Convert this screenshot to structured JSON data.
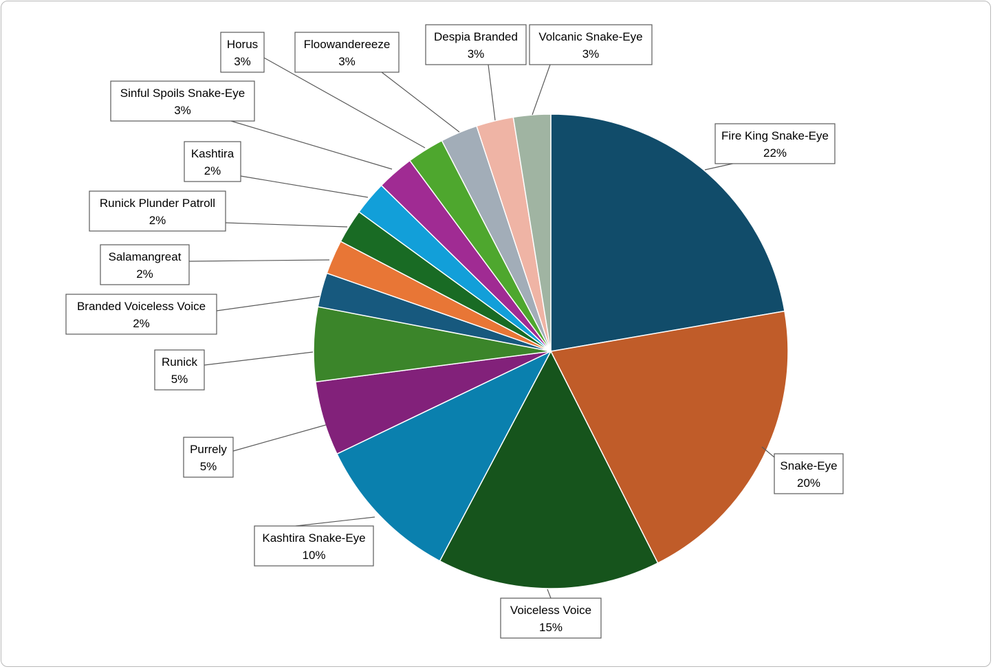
{
  "chart_data": {
    "type": "pie",
    "title": "",
    "start_angle_deg": 0,
    "direction": "clockwise",
    "slices": [
      {
        "label": "Fire King Snake-Eye",
        "value": 22,
        "display": "22%",
        "color": "#114c6a"
      },
      {
        "label": "Snake-Eye",
        "value": 20,
        "display": "20%",
        "color": "#c05c29"
      },
      {
        "label": "Voiceless Voice",
        "value": 15,
        "display": "15%",
        "color": "#16541c"
      },
      {
        "label": "Kashtira Snake-Eye",
        "value": 10,
        "display": "10%",
        "color": "#0a80ae"
      },
      {
        "label": "Purrely",
        "value": 5,
        "display": "5%",
        "color": "#82217a"
      },
      {
        "label": "Runick",
        "value": 5,
        "display": "5%",
        "color": "#3b852a"
      },
      {
        "label": "Branded Voiceless Voice",
        "value": 2.3,
        "display": "2%",
        "color": "#17597e"
      },
      {
        "label": "Salamangreat",
        "value": 2.3,
        "display": "2%",
        "color": "#e87636"
      },
      {
        "label": "Runick Plunder Patroll",
        "value": 2.3,
        "display": "2%",
        "color": "#196b24"
      },
      {
        "label": "Kashtira",
        "value": 2.3,
        "display": "2%",
        "color": "#129fd9"
      },
      {
        "label": "Sinful Spoils Snake-Eye",
        "value": 2.5,
        "display": "3%",
        "color": "#a02b93"
      },
      {
        "label": "Floowandereeze",
        "value": 2.5,
        "display": "3%",
        "color": "#4ea72e"
      },
      {
        "label": "Horus",
        "value": 2.5,
        "display": "3%",
        "color": "#a2adb8"
      },
      {
        "label": "Despia Branded",
        "value": 2.5,
        "display": "3%",
        "color": "#efb4a5"
      },
      {
        "label": "Volcanic Snake-Eye",
        "value": 2.5,
        "display": "3%",
        "color": "#a0b4a2"
      }
    ]
  }
}
